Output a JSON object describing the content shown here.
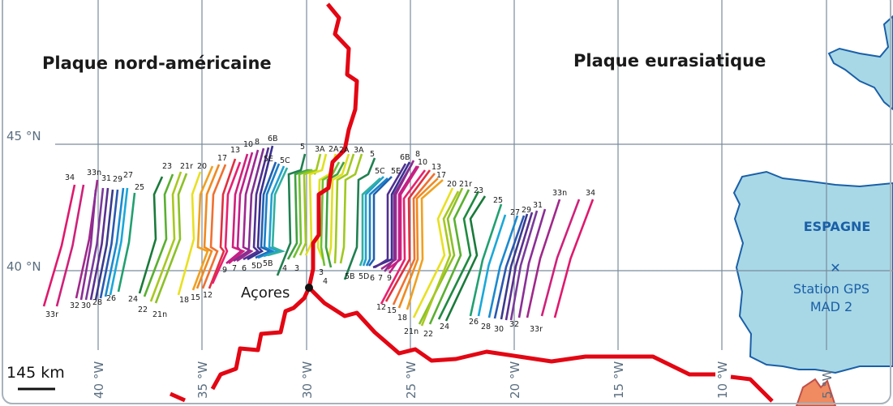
{
  "map": {
    "plates": {
      "north_american": "Plaque nord-américaine",
      "eurasian": "Plaque eurasiatique"
    },
    "latitudes": [
      "45 °N",
      "40 °N"
    ],
    "longitudes": [
      "40 °W",
      "35 °W",
      "30 °W",
      "25 °W",
      "20 °W",
      "15 °W",
      "10 °W",
      "5 °W"
    ],
    "scale_bar": "145 km",
    "places": {
      "azores": "Açores",
      "spain": "ESPAGNE",
      "station_line1": "Station GPS",
      "station_line2": "MAD 2"
    },
    "colors": {
      "ridge": "#e30613",
      "land": "#a8d8e6",
      "coast": "#1a5fa8",
      "grid": "#7a8c9c",
      "africa": "#f08a60",
      "label_blue": "#1a5fa8"
    },
    "isochron_labels": {
      "west_top": [
        "34",
        "33n",
        "31",
        "29",
        "27",
        "25",
        "23",
        "21r",
        "20",
        "17",
        "13",
        "10",
        "8",
        "6B",
        "5E",
        "5C",
        "5",
        "3A",
        "2A"
      ],
      "west_bottom": [
        "33r",
        "32",
        "30",
        "28",
        "26",
        "24",
        "22",
        "21n",
        "18",
        "15",
        "12",
        "9",
        "7",
        "6",
        "5D",
        "5B",
        "4",
        "3"
      ],
      "east_top": [
        "2A",
        "3A",
        "5",
        "5C",
        "5E",
        "6B",
        "8",
        "10",
        "13",
        "17",
        "20",
        "21r",
        "23",
        "25",
        "27",
        "29",
        "31",
        "33n",
        "34"
      ],
      "east_bottom": [
        "3",
        "4",
        "5B",
        "5D",
        "6",
        "7",
        "9",
        "12",
        "15",
        "18",
        "21n",
        "22",
        "24",
        "26",
        "28",
        "30",
        "32",
        "33r"
      ]
    }
  }
}
